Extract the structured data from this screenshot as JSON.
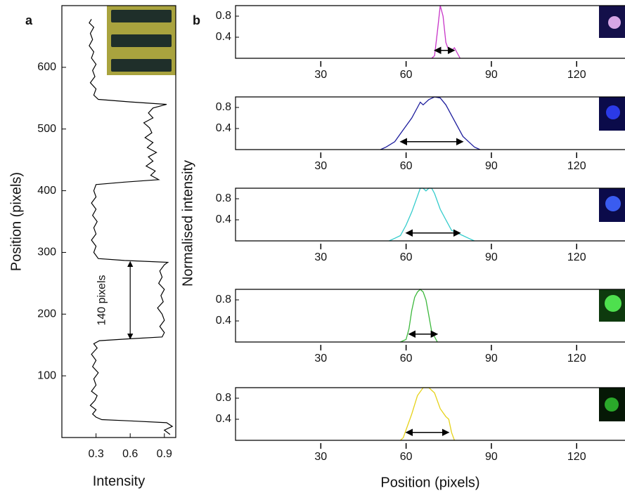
{
  "chart_data": [
    {
      "type": "profile",
      "panel": "a",
      "xlabel": "Intensity",
      "ylabel": "Position (pixels)",
      "xlim": [
        0,
        1
      ],
      "ylim": [
        0,
        700
      ],
      "xticks": [
        0.3,
        0.6,
        0.9
      ],
      "yticks": [
        100,
        200,
        300,
        400,
        500,
        600
      ],
      "color": "#000000",
      "y": [
        5,
        12,
        18,
        24,
        27,
        29,
        33,
        38,
        45,
        52,
        60,
        68,
        75,
        85,
        95,
        105,
        115,
        125,
        135,
        145,
        152,
        157,
        160,
        163,
        170,
        180,
        190,
        200,
        210,
        220,
        230,
        240,
        250,
        260,
        270,
        280,
        284,
        287,
        290,
        300,
        310,
        320,
        330,
        340,
        350,
        360,
        370,
        380,
        390,
        400,
        410,
        414,
        418,
        425,
        432,
        440,
        448,
        455,
        462,
        470,
        478,
        486,
        494,
        502,
        510,
        518,
        526,
        534,
        540,
        544,
        548,
        555,
        565,
        575,
        585,
        595,
        605,
        615,
        625,
        635,
        645,
        655,
        665,
        672,
        678
      ],
      "values": [
        0.95,
        0.9,
        0.97,
        0.92,
        0.6,
        0.35,
        0.3,
        0.27,
        0.3,
        0.25,
        0.29,
        0.31,
        0.26,
        0.3,
        0.28,
        0.32,
        0.27,
        0.3,
        0.26,
        0.31,
        0.28,
        0.33,
        0.6,
        0.88,
        0.9,
        0.86,
        0.9,
        0.88,
        0.84,
        0.89,
        0.87,
        0.9,
        0.85,
        0.88,
        0.86,
        0.9,
        0.93,
        0.55,
        0.32,
        0.28,
        0.3,
        0.26,
        0.3,
        0.28,
        0.31,
        0.27,
        0.3,
        0.26,
        0.3,
        0.28,
        0.3,
        0.55,
        0.85,
        0.78,
        0.82,
        0.74,
        0.8,
        0.76,
        0.83,
        0.75,
        0.8,
        0.73,
        0.79,
        0.77,
        0.72,
        0.8,
        0.76,
        0.8,
        0.92,
        0.6,
        0.32,
        0.28,
        0.3,
        0.25,
        0.29,
        0.27,
        0.3,
        0.26,
        0.28,
        0.24,
        0.27,
        0.25,
        0.28,
        0.24,
        0.26
      ],
      "annotation": {
        "text": "140 pixels",
        "x": 0.6,
        "y": [
          160,
          285
        ]
      }
    },
    {
      "type": "line",
      "panel": "b",
      "xlabel": "Position (pixels)",
      "ylabel": "Normalised intensity",
      "xlim": [
        0,
        137
      ],
      "ylim": [
        0,
        1
      ],
      "xticks": [
        30,
        60,
        90,
        120
      ],
      "yticks": [
        0.4,
        0.8
      ],
      "subplots": [
        {
          "color": "#c835c8",
          "x": [
            69,
            70,
            71,
            72,
            73,
            74,
            75,
            76,
            77,
            78,
            79
          ],
          "values": [
            0,
            0.05,
            0.5,
            1.0,
            0.8,
            0.3,
            0.15,
            0.15,
            0.2,
            0.1,
            0
          ],
          "arrow": {
            "x": [
              70,
              77
            ],
            "y": 0.15
          }
        },
        {
          "color": "#1c1c9c",
          "x": [
            51,
            53,
            56,
            58,
            60,
            62,
            64,
            65,
            66,
            68,
            70,
            72,
            74,
            76,
            78,
            80,
            82,
            84,
            86
          ],
          "values": [
            0,
            0.05,
            0.15,
            0.3,
            0.45,
            0.6,
            0.8,
            0.9,
            0.85,
            0.95,
            1.0,
            0.98,
            0.85,
            0.65,
            0.45,
            0.25,
            0.15,
            0.05,
            0
          ],
          "arrow": {
            "x": [
              58,
              80
            ],
            "y": 0.15
          }
        },
        {
          "color": "#33cccc",
          "x": [
            54,
            56,
            58,
            60,
            62,
            64,
            65,
            66,
            67,
            68,
            69,
            70,
            72,
            74,
            76,
            78,
            80,
            82,
            84
          ],
          "values": [
            0,
            0.05,
            0.1,
            0.3,
            0.55,
            0.85,
            1.0,
            1.0,
            0.95,
            1.0,
            1.0,
            0.9,
            0.6,
            0.4,
            0.2,
            0.15,
            0.1,
            0.05,
            0
          ],
          "arrow": {
            "x": [
              60,
              79
            ],
            "y": 0.15
          }
        },
        {
          "color": "#3cb83c",
          "x": [
            58,
            60,
            61,
            62,
            63,
            64,
            65,
            66,
            67,
            68,
            69,
            70,
            71
          ],
          "values": [
            0,
            0.05,
            0.25,
            0.6,
            0.85,
            0.95,
            1.0,
            0.95,
            0.8,
            0.5,
            0.2,
            0.1,
            0
          ],
          "arrow": {
            "x": [
              61,
              71
            ],
            "y": 0.15
          }
        },
        {
          "color": "#e6d21a",
          "x": [
            58,
            59,
            60,
            62,
            64,
            66,
            68,
            70,
            72,
            74,
            75,
            76,
            77
          ],
          "values": [
            0,
            0.05,
            0.2,
            0.5,
            0.85,
            1.0,
            1.0,
            0.9,
            0.6,
            0.45,
            0.4,
            0.15,
            0
          ],
          "arrow": {
            "x": [
              60,
              75
            ],
            "y": 0.15
          }
        }
      ]
    }
  ]
}
